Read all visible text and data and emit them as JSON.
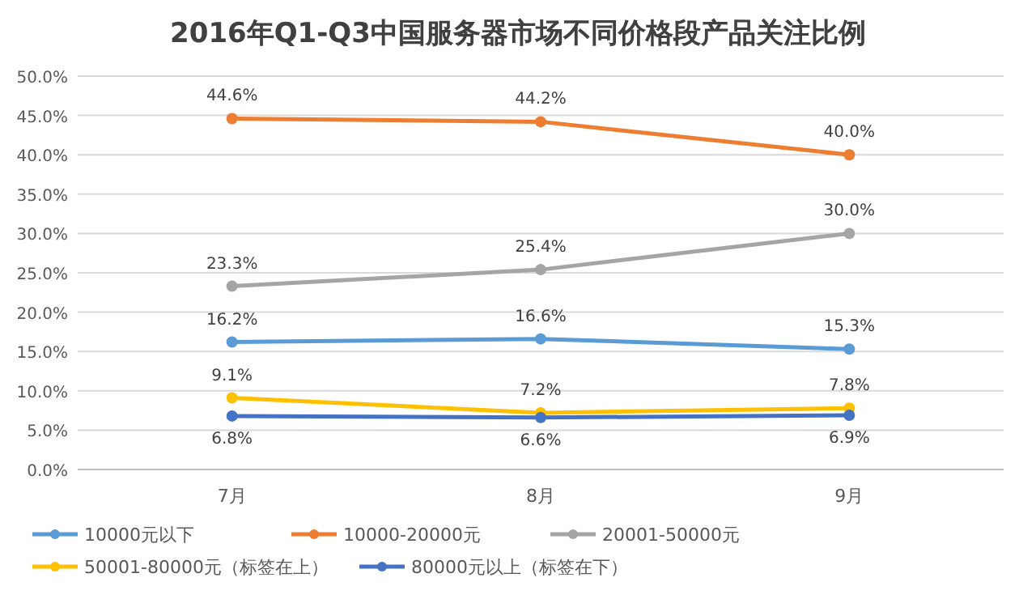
{
  "chart_data": {
    "type": "line",
    "title": "2016年Q1-Q3中国服务器市场不同价格段产品关注比例",
    "categories": [
      "7月",
      "8月",
      "9月"
    ],
    "series": [
      {
        "name": "10000元以下",
        "color": "#5b9bd5",
        "values": [
          16.2,
          16.6,
          15.3
        ],
        "value_labels": [
          "16.2%",
          "16.6%",
          "15.3%"
        ]
      },
      {
        "name": "10000-20000元",
        "color": "#ed7d31",
        "values": [
          44.6,
          44.2,
          40.0
        ],
        "value_labels": [
          "44.6%",
          "44.2%",
          "40.0%"
        ]
      },
      {
        "name": "20001-50000元",
        "color": "#a5a5a5",
        "values": [
          23.3,
          25.4,
          30.0
        ],
        "value_labels": [
          "23.3%",
          "25.4%",
          "30.0%"
        ]
      },
      {
        "name": "50001-80000元（标签在上）",
        "color": "#ffc000",
        "values": [
          9.1,
          7.2,
          7.8
        ],
        "value_labels": [
          "9.1%",
          "7.2%",
          "7.8%"
        ]
      },
      {
        "name": "80000元以上（标签在下）",
        "color": "#4472c4",
        "values": [
          6.8,
          6.6,
          6.9
        ],
        "value_labels": [
          "6.8%",
          "6.6%",
          "6.9%"
        ]
      }
    ],
    "ylim": [
      0,
      50
    ],
    "yticks": [
      {
        "value": 0,
        "label": "0.0%"
      },
      {
        "value": 5,
        "label": "5.0%"
      },
      {
        "value": 10,
        "label": "10.0%"
      },
      {
        "value": 15,
        "label": "15.0%"
      },
      {
        "value": 20,
        "label": "20.0%"
      },
      {
        "value": 25,
        "label": "25.0%"
      },
      {
        "value": 30,
        "label": "30.0%"
      },
      {
        "value": 35,
        "label": "35.0%"
      },
      {
        "value": 40,
        "label": "40.0%"
      },
      {
        "value": 45,
        "label": "45.0%"
      },
      {
        "value": 50,
        "label": "50.0%"
      }
    ],
    "grid": "y",
    "legend": "bottom",
    "marker": "circle",
    "line_style": "solid"
  }
}
